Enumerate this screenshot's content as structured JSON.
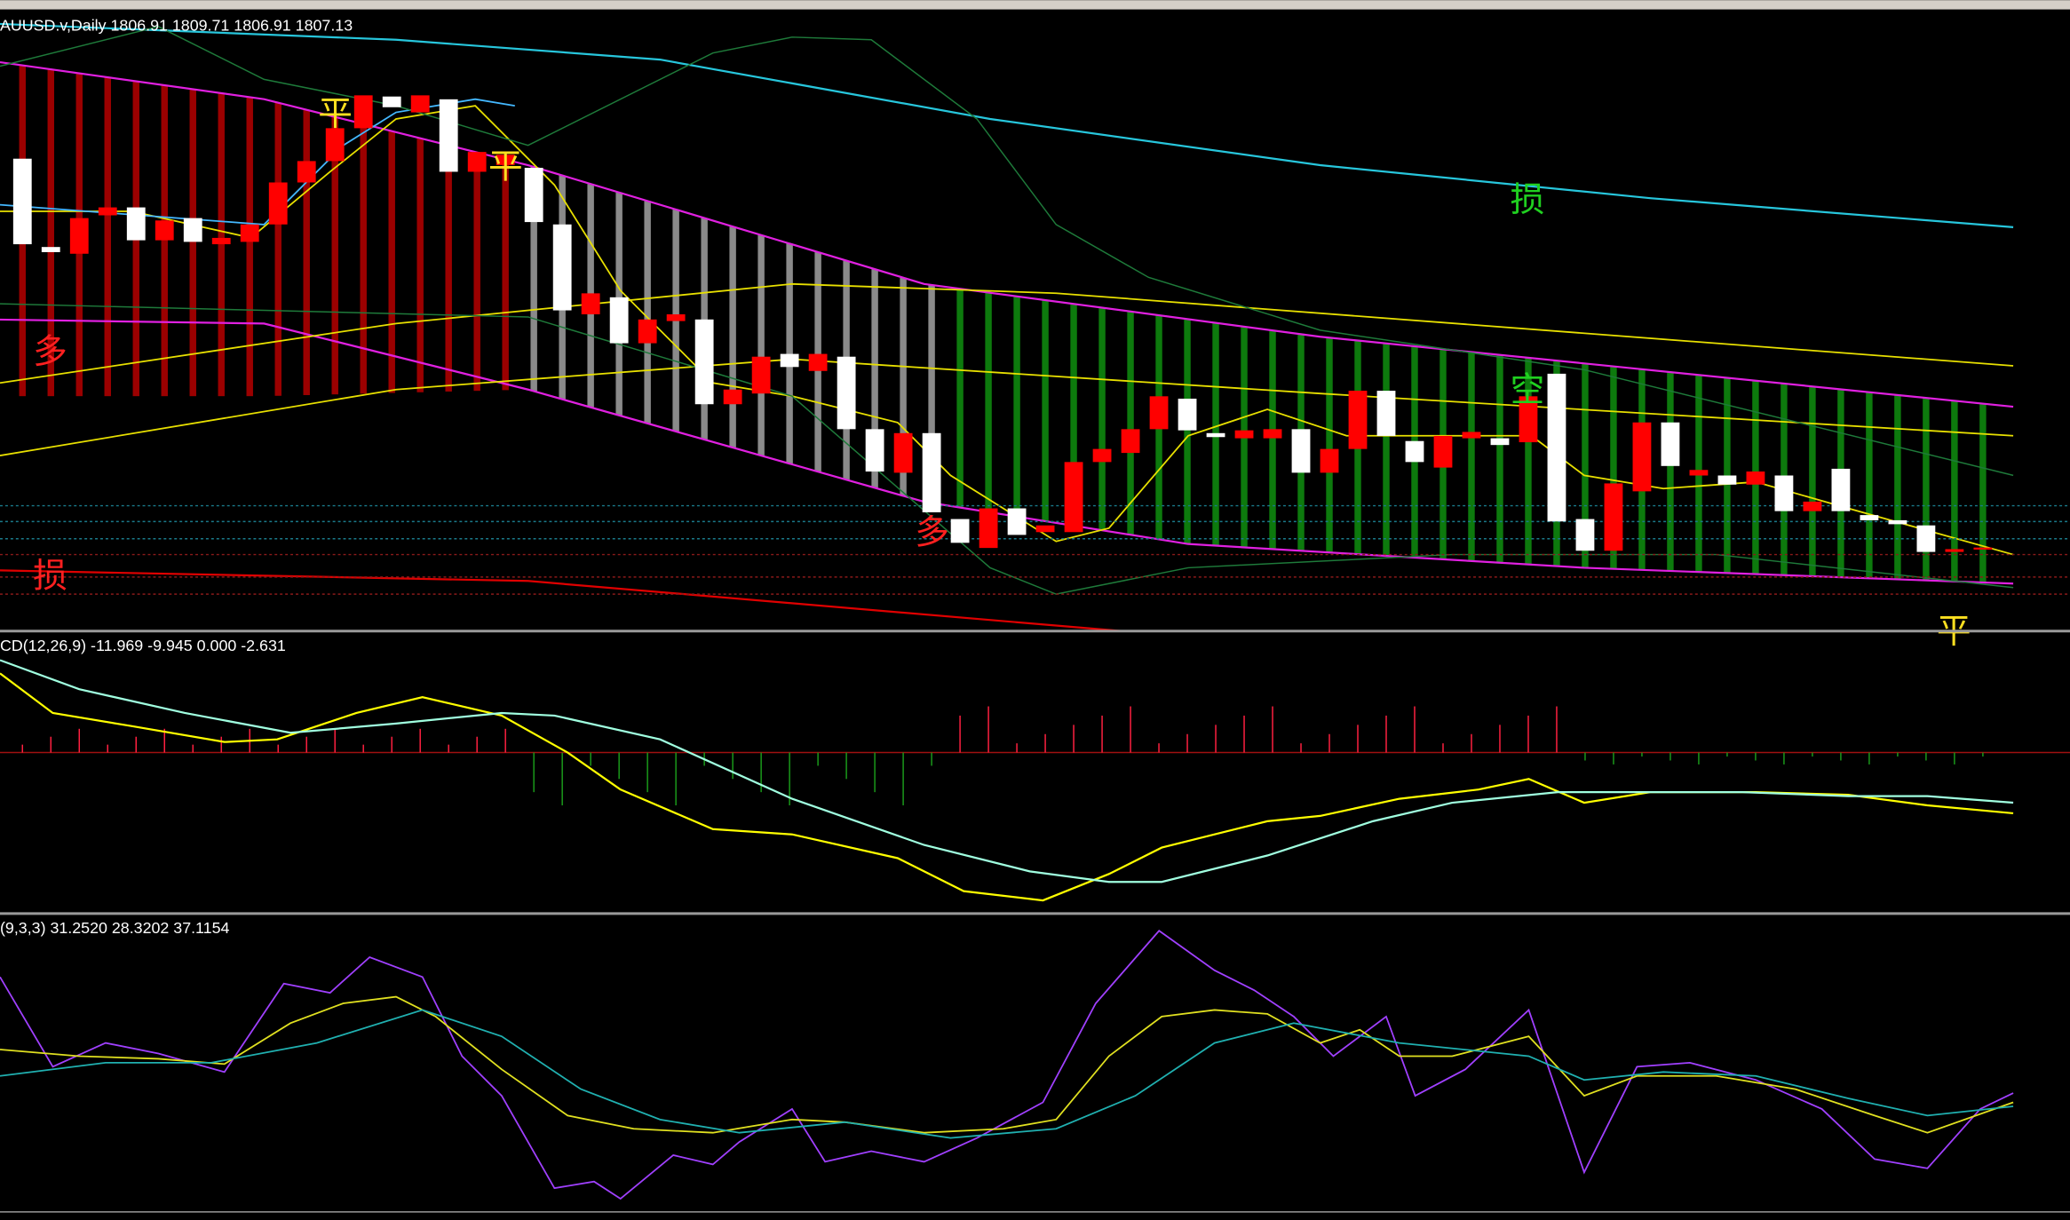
{
  "main_panel": {
    "header": "AUUSD.v,Daily  1806.91 1809.71 1806.91 1807.13",
    "ylim": [
      1787,
      1942
    ],
    "up_color": "#ff0000",
    "down_color": "#ffffff",
    "candles": {
      "open": [
        1905.3,
        1883.0,
        1881.3,
        1891.0,
        1893.0,
        1884.7,
        1890.3,
        1883.7,
        1884.3,
        1888.7,
        1899.3,
        1904.7,
        1913.0,
        1921.0,
        1917.0,
        1920.3,
        1902.0,
        1903.7,
        1903.0,
        1888.7,
        1866.0,
        1870.3,
        1858.7,
        1864.3,
        1864.7,
        1843.3,
        1846.0,
        1856.0,
        1851.7,
        1855.3,
        1837.0,
        1826.0,
        1836.0,
        1814.3,
        1807.0,
        1817.0,
        1811.0,
        1811.0,
        1828.7,
        1831.0,
        1837.0,
        1844.7,
        1836.0,
        1834.7,
        1834.7,
        1837.0,
        1826.0,
        1832.0,
        1846.7,
        1834.0,
        1827.3,
        1834.7,
        1834.7,
        1833.7,
        1851.0,
        1814.3,
        1806.3,
        1821.3,
        1838.7,
        1825.3,
        1825.3,
        1823.0,
        1825.3,
        1816.3,
        1827.0,
        1815.3,
        1814.0,
        1812.7,
        1806.0,
        1806.9
      ],
      "close": [
        1883.7,
        1881.7,
        1890.3,
        1893.0,
        1884.7,
        1889.7,
        1884.3,
        1885.3,
        1888.7,
        1899.3,
        1904.7,
        1913.0,
        1921.3,
        1918.3,
        1921.3,
        1902.0,
        1907.0,
        1906.3,
        1889.3,
        1867.0,
        1871.3,
        1858.7,
        1864.7,
        1866.0,
        1843.3,
        1847.0,
        1855.3,
        1852.7,
        1856.0,
        1837.0,
        1826.3,
        1836.0,
        1816.0,
        1808.3,
        1817.0,
        1810.3,
        1812.7,
        1828.7,
        1832.0,
        1837.0,
        1845.3,
        1836.7,
        1835.0,
        1836.7,
        1837.0,
        1826.0,
        1832.0,
        1846.7,
        1835.3,
        1828.7,
        1835.3,
        1836.3,
        1833.0,
        1845.3,
        1813.7,
        1806.3,
        1823.3,
        1838.7,
        1827.7,
        1826.7,
        1823.0,
        1826.3,
        1816.3,
        1818.7,
        1816.3,
        1814.0,
        1813.0,
        1806.0,
        1806.7,
        1807.1
      ]
    },
    "annotations": [
      "多",
      "平",
      "平",
      "损",
      "空",
      "多",
      "损",
      "平"
    ]
  },
  "macd_panel": {
    "header": "CD(12,26,9) -11.969 -9.945 0.000 -2.631"
  },
  "kdj_panel": {
    "header": "(9,3,3) 31.2520 28.3202 37.1154"
  }
}
